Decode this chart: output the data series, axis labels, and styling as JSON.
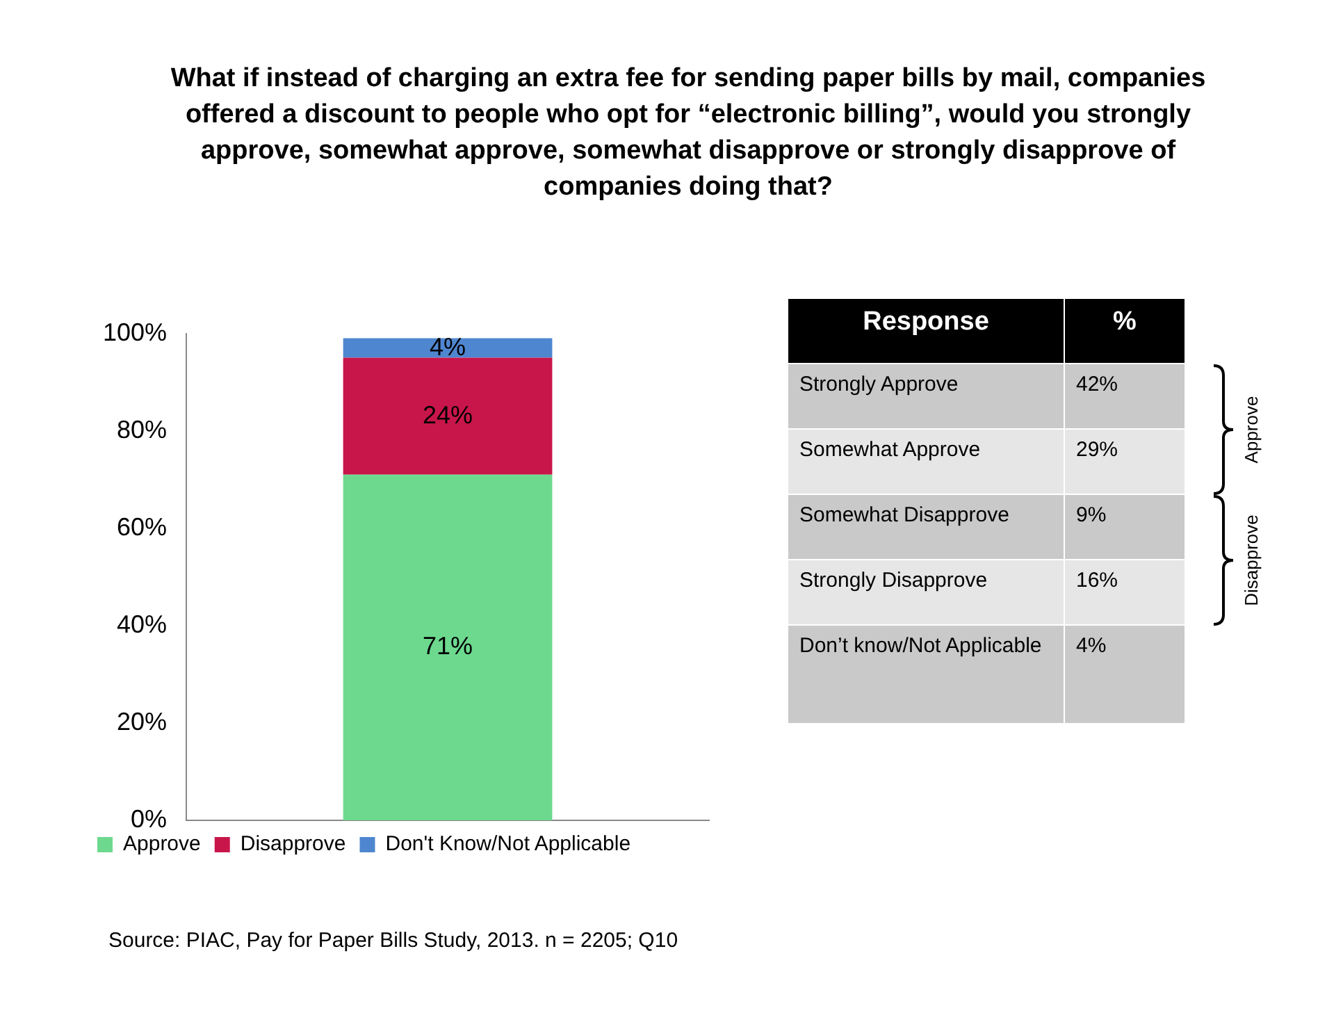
{
  "chart_data": [
    {
      "type": "bar",
      "title": "What if instead of charging an extra fee for sending paper bills by mail, companies offered a discount to people who opt for “electronic billing”, would you strongly approve, somewhat approve, somewhat disapprove or strongly disapprove of companies doing that?",
      "categories": [
        null
      ],
      "stacked": true,
      "series": [
        {
          "name": "Approve",
          "color": "#6dd98f",
          "values": [
            71
          ],
          "value_labels": [
            "71%"
          ]
        },
        {
          "name": "Disapprove",
          "color": "#c8164a",
          "values": [
            24
          ],
          "value_labels": [
            "24%"
          ]
        },
        {
          "name": "Don't Know/Not Applicable",
          "color": "#4f86d0",
          "values": [
            4
          ],
          "value_labels": [
            "4%"
          ]
        }
      ],
      "ylim": [
        0,
        100
      ],
      "yticks": [
        {
          "value": 0,
          "label": "0%"
        },
        {
          "value": 20,
          "label": "20%"
        },
        {
          "value": 40,
          "label": "40%"
        },
        {
          "value": 60,
          "label": "60%"
        },
        {
          "value": 80,
          "label": "80%"
        },
        {
          "value": 100,
          "label": "100%"
        }
      ],
      "tick_labels": "y",
      "grid": false,
      "legend": "bottom left",
      "annotations": [
        "Source: PIAC, Pay for Paper Bills Study, 2013. n = 2205; Q10"
      ]
    },
    {
      "type": "other",
      "xlabel": "Response",
      "ylabel": "%",
      "categories": [
        "Strongly Approve",
        "Somewhat Approve",
        "Somewhat Disapprove",
        "Strongly Disapprove",
        "Don’t know/Not Applicable"
      ],
      "value_labels": [
        "42%",
        "29%",
        "9%",
        "16%",
        "4%"
      ],
      "annotations": [
        "Approve",
        "Disapprove"
      ]
    }
  ]
}
